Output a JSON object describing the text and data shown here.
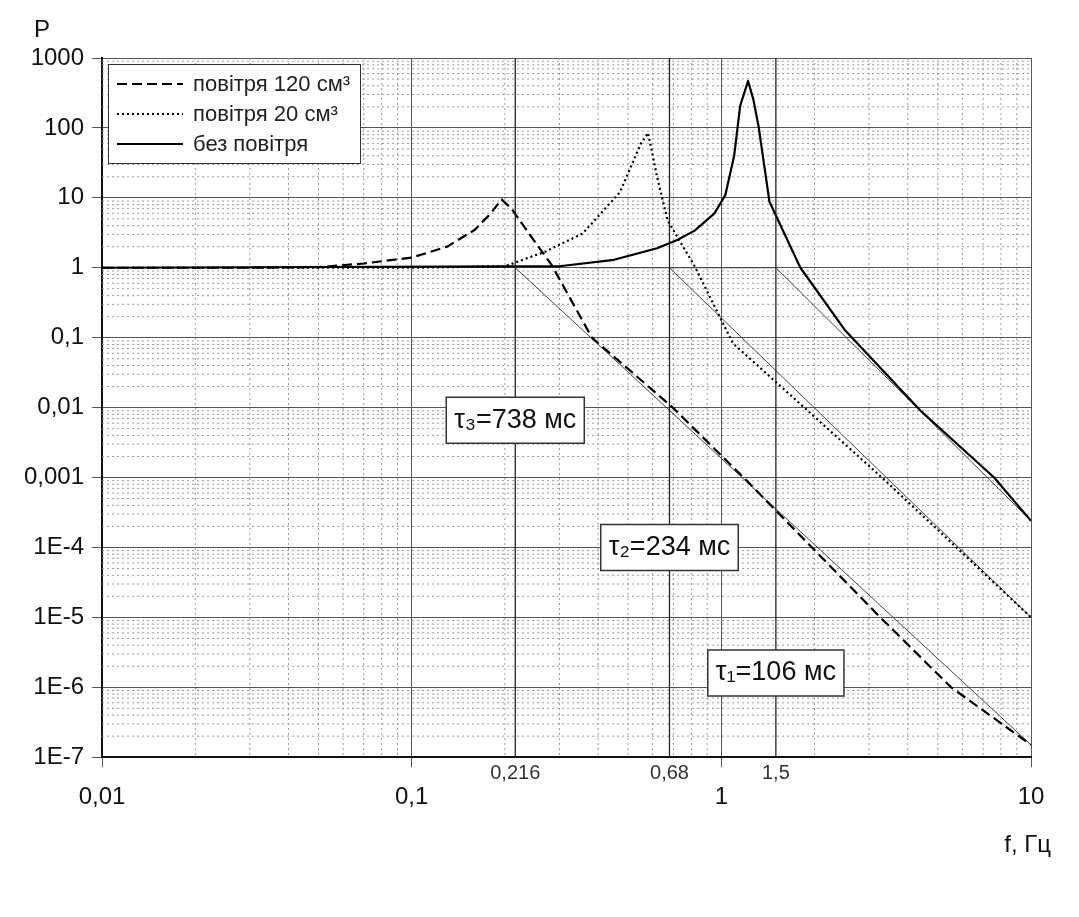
{
  "chart_data": {
    "type": "line",
    "xlabel": "f, Гц",
    "ylabel": "P",
    "log": "xy",
    "grid": true,
    "legend": "top left",
    "marker": "none",
    "xlim": [
      0.01,
      10
    ],
    "ylim": [
      1e-07,
      1000
    ],
    "xticks": [
      {
        "value": 0.01,
        "label": "0,01"
      },
      {
        "value": 0.1,
        "label": "0,1"
      },
      1,
      10
    ],
    "yticks": [
      {
        "value": 1e-07,
        "label": "1E-7"
      },
      {
        "value": 1e-06,
        "label": "1E-6"
      },
      {
        "value": 1e-05,
        "label": "1E-5"
      },
      {
        "value": 0.0001,
        "label": "1E-4"
      },
      {
        "value": 0.001,
        "label": "0,001"
      },
      {
        "value": 0.01,
        "label": "0,01"
      },
      {
        "value": 0.1,
        "label": "0,1"
      },
      1,
      10,
      100,
      1000
    ],
    "series": [
      {
        "name": "повітря 120 см³",
        "color": "#000000",
        "line_style": "dashed",
        "x": [
          0.01,
          0.03,
          0.05,
          0.07,
          0.1,
          0.13,
          0.16,
          0.18,
          0.195,
          0.21,
          0.243,
          0.283,
          0.382,
          0.697,
          1.18,
          3.26,
          5.52,
          10
        ],
        "values": [
          1,
          1,
          1.02,
          1.15,
          1.4,
          2,
          3.5,
          6,
          9.5,
          7,
          2.8,
          1.1,
          0.1,
          0.01,
          0.001,
          1e-05,
          1e-06,
          1.5e-07
        ]
      },
      {
        "name": "повітря 20 см³",
        "color": "#000000",
        "line_style": "dotted",
        "x": [
          0.01,
          0.1,
          0.2,
          0.27,
          0.357,
          0.47,
          0.55,
          0.58,
          0.62,
          0.67,
          0.82,
          1.09,
          3.3,
          10
        ],
        "values": [
          1,
          1,
          1.05,
          1.7,
          3.1,
          12,
          60,
          85,
          20,
          4.8,
          1.05,
          0.083,
          0.001,
          1e-05
        ]
      },
      {
        "name": "без повітря",
        "color": "#000000",
        "line_style": "solid",
        "x": [
          0.01,
          0.3,
          0.45,
          0.62,
          0.72,
          0.82,
          0.95,
          1.03,
          1.1,
          1.15,
          1.22,
          1.27,
          1.32,
          1.43,
          1.8,
          2.5,
          4.4,
          7.6,
          10
        ],
        "values": [
          1,
          1.05,
          1.3,
          1.9,
          2.5,
          3.4,
          6,
          11,
          40,
          206,
          470,
          250,
          103,
          8.8,
          1,
          0.13,
          0.009,
          0.001,
          0.00024
        ]
      },
      {
        "color": "#444444",
        "line_style": "solid",
        "x": [
          0.35,
          1.5
        ],
        "values": [
          1,
          1
        ]
      },
      {
        "color": "#444444",
        "line_style": "solid",
        "x": [
          0.216,
          10
        ],
        "values": [
          1,
          1.5e-07
        ]
      },
      {
        "color": "#444444",
        "line_style": "solid",
        "x": [
          0.68,
          10
        ],
        "values": [
          1,
          1e-05
        ]
      },
      {
        "color": "#444444",
        "line_style": "solid",
        "x": [
          1.5,
          10
        ],
        "values": [
          1,
          0.00024
        ]
      }
    ],
    "ref_lines": [
      {
        "axis": "x",
        "value": 0.216,
        "label": "0,216",
        "color": "#222222"
      },
      {
        "axis": "x",
        "value": 0.68,
        "label": "0,68",
        "color": "#222222"
      },
      {
        "axis": "x",
        "value": 1.5,
        "label": "1,5",
        "color": "#222222"
      }
    ],
    "annotations": [
      {
        "text": "τ₃=738 мс",
        "x": 0.216,
        "y": 0.0066
      },
      {
        "text": "τ₂=234 мс",
        "x": 0.68,
        "y": 0.0001
      },
      {
        "text": "τ₁=106 мс",
        "x": 1.5,
        "y": 1.6e-06
      }
    ]
  }
}
